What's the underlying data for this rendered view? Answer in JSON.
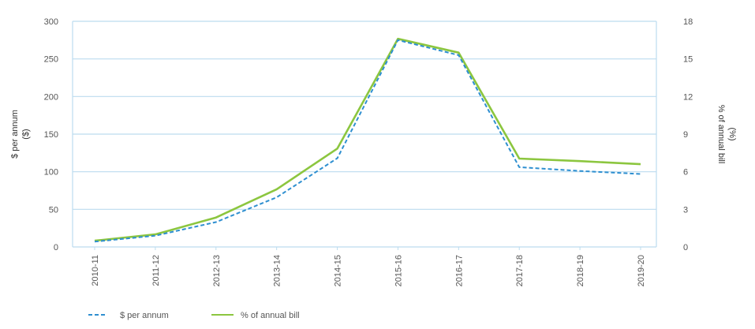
{
  "chart_data": {
    "type": "line",
    "categories": [
      "2010-11",
      "2011-12",
      "2012-13",
      "2013-14",
      "2014-15",
      "2015-16",
      "2016-17",
      "2017-18",
      "2018-19",
      "2019-20"
    ],
    "series": [
      {
        "name": "$ per annum",
        "axis": "left",
        "color": "#2e8fd0",
        "style": "dashed",
        "values": [
          7,
          15,
          33,
          66,
          118,
          275,
          255,
          106,
          101,
          97
        ]
      },
      {
        "name": "% of annual bill",
        "axis": "right",
        "color": "#8cc63f",
        "style": "solid",
        "values": [
          0.5,
          1.0,
          2.35,
          4.6,
          7.85,
          16.6,
          15.5,
          7.05,
          6.85,
          6.6
        ]
      }
    ],
    "y_left": {
      "label_line1": "$ per annum",
      "label_line2": "($)",
      "range": [
        0,
        300
      ],
      "ticks": [
        "0",
        "50",
        "100",
        "150",
        "200",
        "250",
        "300"
      ]
    },
    "y_right": {
      "label_line1": "% of annual bill",
      "label_line2": "(%)",
      "range": [
        0,
        18
      ],
      "ticks": [
        "0",
        "3",
        "6",
        "9",
        "12",
        "15",
        "18"
      ]
    },
    "grid": true,
    "legend_position": "bottom-left",
    "colors": {
      "grid": "#bcdcef",
      "frame": "#bcdcef"
    }
  }
}
